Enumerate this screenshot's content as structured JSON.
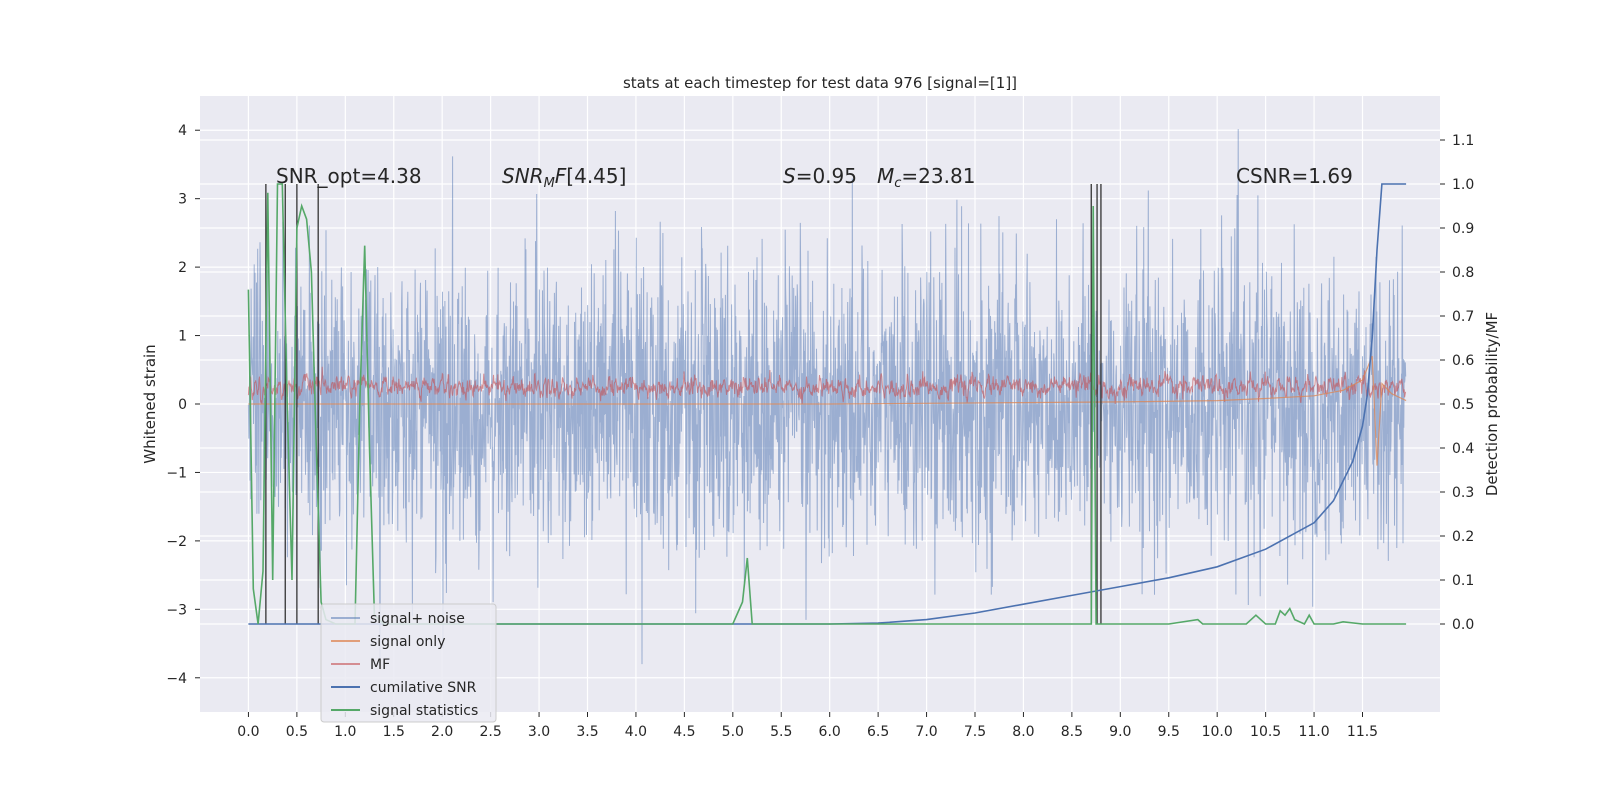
{
  "chart_data": {
    "type": "line",
    "title": "stats at each timestep for test data 976 [signal=[1]]",
    "xlabel": "",
    "ylabel": "Whitened strain",
    "y2label": "Detection probability/MF",
    "xlim": [
      -0.5,
      12.3
    ],
    "ylim": [
      -4.5,
      4.5
    ],
    "y2lim": [
      -0.2,
      1.2
    ],
    "xticks": [
      "0.0",
      "0.5",
      "1.0",
      "1.5",
      "2.0",
      "2.5",
      "3.0",
      "3.5",
      "4.0",
      "4.5",
      "5.0",
      "5.5",
      "6.0",
      "6.5",
      "7.0",
      "7.5",
      "8.0",
      "8.5",
      "9.0",
      "9.5",
      "10.0",
      "10.5",
      "11.0",
      "11.5"
    ],
    "yticks": [
      -4,
      -3,
      -2,
      -1,
      0,
      1,
      2,
      3,
      4
    ],
    "y2ticks": [
      "0.0",
      "0.1",
      "0.2",
      "0.3",
      "0.4",
      "0.5",
      "0.6",
      "0.7",
      "0.8",
      "0.9",
      "1.0",
      "1.1"
    ],
    "grid": true,
    "legend_position": "lower-left",
    "annotations": {
      "snr_opt": "SNR_opt=4.38",
      "snr_mf": "[4.45]",
      "s_value": "=0.95",
      "mc_value": "=23.81",
      "csnr": "CSNR=1.69"
    },
    "series": [
      {
        "name": "signal+ noise",
        "color": "#4c72b0",
        "axis": "left",
        "description_range": [
          -3.8,
          4.1
        ]
      },
      {
        "name": "signal only",
        "color": "#dd8452",
        "axis": "left",
        "x": [
          0,
          2,
          4,
          6,
          8,
          9,
          10,
          10.5,
          11,
          11.3,
          11.5,
          11.6,
          11.65,
          11.7,
          11.8,
          11.95
        ],
        "y": [
          0.0,
          0.0,
          0.0,
          0.0,
          0.02,
          0.03,
          0.05,
          0.08,
          0.12,
          0.2,
          0.35,
          0.7,
          -0.9,
          0.3,
          0.15,
          0.05
        ]
      },
      {
        "name": "MF",
        "color": "#c44e52",
        "axis": "left",
        "description_range": [
          0.0,
          0.9
        ]
      },
      {
        "name": "cumilative SNR",
        "color": "#4c72b0",
        "axis": "right",
        "x": [
          0,
          6.0,
          6.5,
          7.0,
          7.5,
          8.0,
          8.5,
          9.0,
          9.5,
          10.0,
          10.5,
          11.0,
          11.2,
          11.4,
          11.5,
          11.55,
          11.6,
          11.65,
          11.7,
          11.95
        ],
        "y": [
          0.0,
          0.0,
          0.002,
          0.01,
          0.025,
          0.045,
          0.065,
          0.085,
          0.105,
          0.13,
          0.17,
          0.23,
          0.28,
          0.37,
          0.45,
          0.52,
          0.65,
          0.85,
          1.0,
          1.0
        ]
      },
      {
        "name": "signal statistics",
        "color": "#55a868",
        "axis": "right",
        "x": [
          0.0,
          0.05,
          0.1,
          0.15,
          0.2,
          0.25,
          0.3,
          0.35,
          0.4,
          0.45,
          0.5,
          0.55,
          0.6,
          0.65,
          0.7,
          0.75,
          0.8,
          0.9,
          1.0,
          1.1,
          1.15,
          1.2,
          1.25,
          1.3,
          1.4,
          2.0,
          3.0,
          4.0,
          5.0,
          5.1,
          5.15,
          5.2,
          5.3,
          6.0,
          7.0,
          8.0,
          8.7,
          8.72,
          8.75,
          8.8,
          9.5,
          9.8,
          9.85,
          9.9,
          10.0,
          10.3,
          10.4,
          10.5,
          10.6,
          10.65,
          10.7,
          10.75,
          10.8,
          10.9,
          10.95,
          11.0,
          11.2,
          11.3,
          11.5,
          11.95
        ],
        "y": [
          0.76,
          0.08,
          0.0,
          0.12,
          0.98,
          0.1,
          1.0,
          1.0,
          0.5,
          0.1,
          0.9,
          0.95,
          0.92,
          0.8,
          0.4,
          0.05,
          0.01,
          0.0,
          0.0,
          0.0,
          0.5,
          0.86,
          0.4,
          0.02,
          0.0,
          0.0,
          0.0,
          0.0,
          0.0,
          0.05,
          0.15,
          0.0,
          0.0,
          0.0,
          0.0,
          0.0,
          0.0,
          0.95,
          0.0,
          0.0,
          0.0,
          0.01,
          0.0,
          0.0,
          0.0,
          0.0,
          0.02,
          0.0,
          0.0,
          0.03,
          0.02,
          0.035,
          0.01,
          0.0,
          0.02,
          0.0,
          0.0,
          0.005,
          0.0,
          0.0
        ]
      }
    ],
    "vertical_markers_x": [
      0.18,
      0.38,
      0.5,
      0.72,
      8.7,
      8.76,
      8.8
    ]
  }
}
